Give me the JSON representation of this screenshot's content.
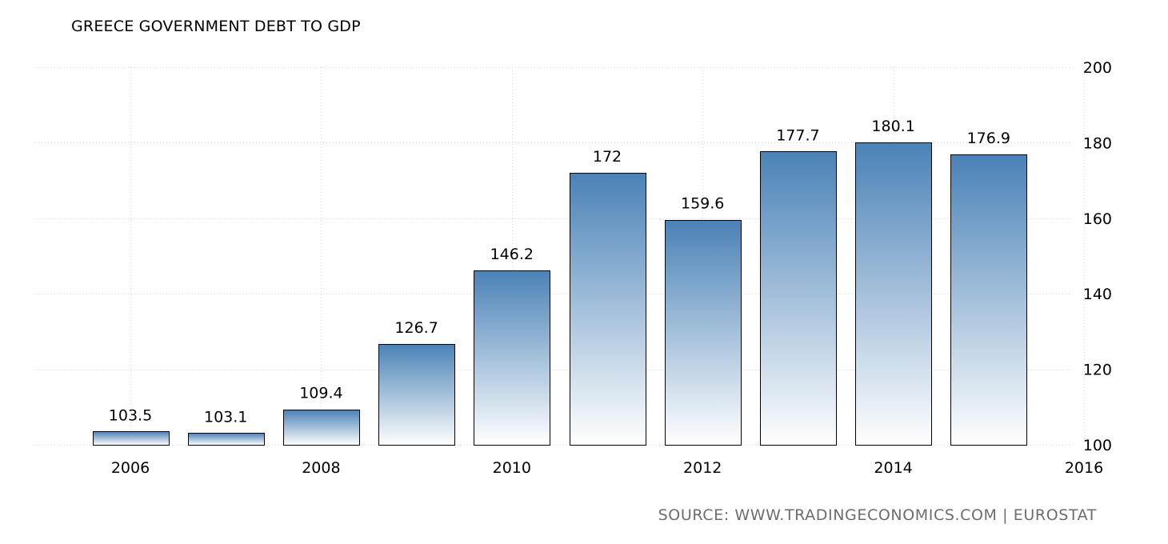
{
  "title": "GREECE GOVERNMENT DEBT TO GDP",
  "source": "SOURCE:  WWW.TRADINGECONOMICS.COM  |  EUROSTAT",
  "colors": {
    "bar_top": "#4a82b7",
    "bar_bottom": "#ffffff",
    "bar_border": "#000000",
    "grid": "#d6d6d6",
    "source_text": "#6d6d6d"
  },
  "chart_data": {
    "type": "bar",
    "title": "GREECE GOVERNMENT DEBT TO GDP",
    "x": [
      2006,
      2007,
      2008,
      2009,
      2010,
      2011,
      2012,
      2013,
      2014,
      2015
    ],
    "values": [
      103.5,
      103.1,
      109.4,
      126.7,
      146.2,
      172,
      159.6,
      177.7,
      180.1,
      176.9
    ],
    "value_labels": [
      "103.5",
      "103.1",
      "109.4",
      "126.7",
      "146.2",
      "172",
      "159.6",
      "177.7",
      "180.1",
      "176.9"
    ],
    "xticks": [
      "2006",
      "2008",
      "2010",
      "2012",
      "2014",
      "2016"
    ],
    "yticks": [
      "100",
      "120",
      "140",
      "160",
      "180",
      "200"
    ],
    "xlim": [
      2005.5,
      2016
    ],
    "ylim": [
      100,
      200
    ],
    "yaxis_side": "right",
    "grid": true,
    "legend": false
  }
}
